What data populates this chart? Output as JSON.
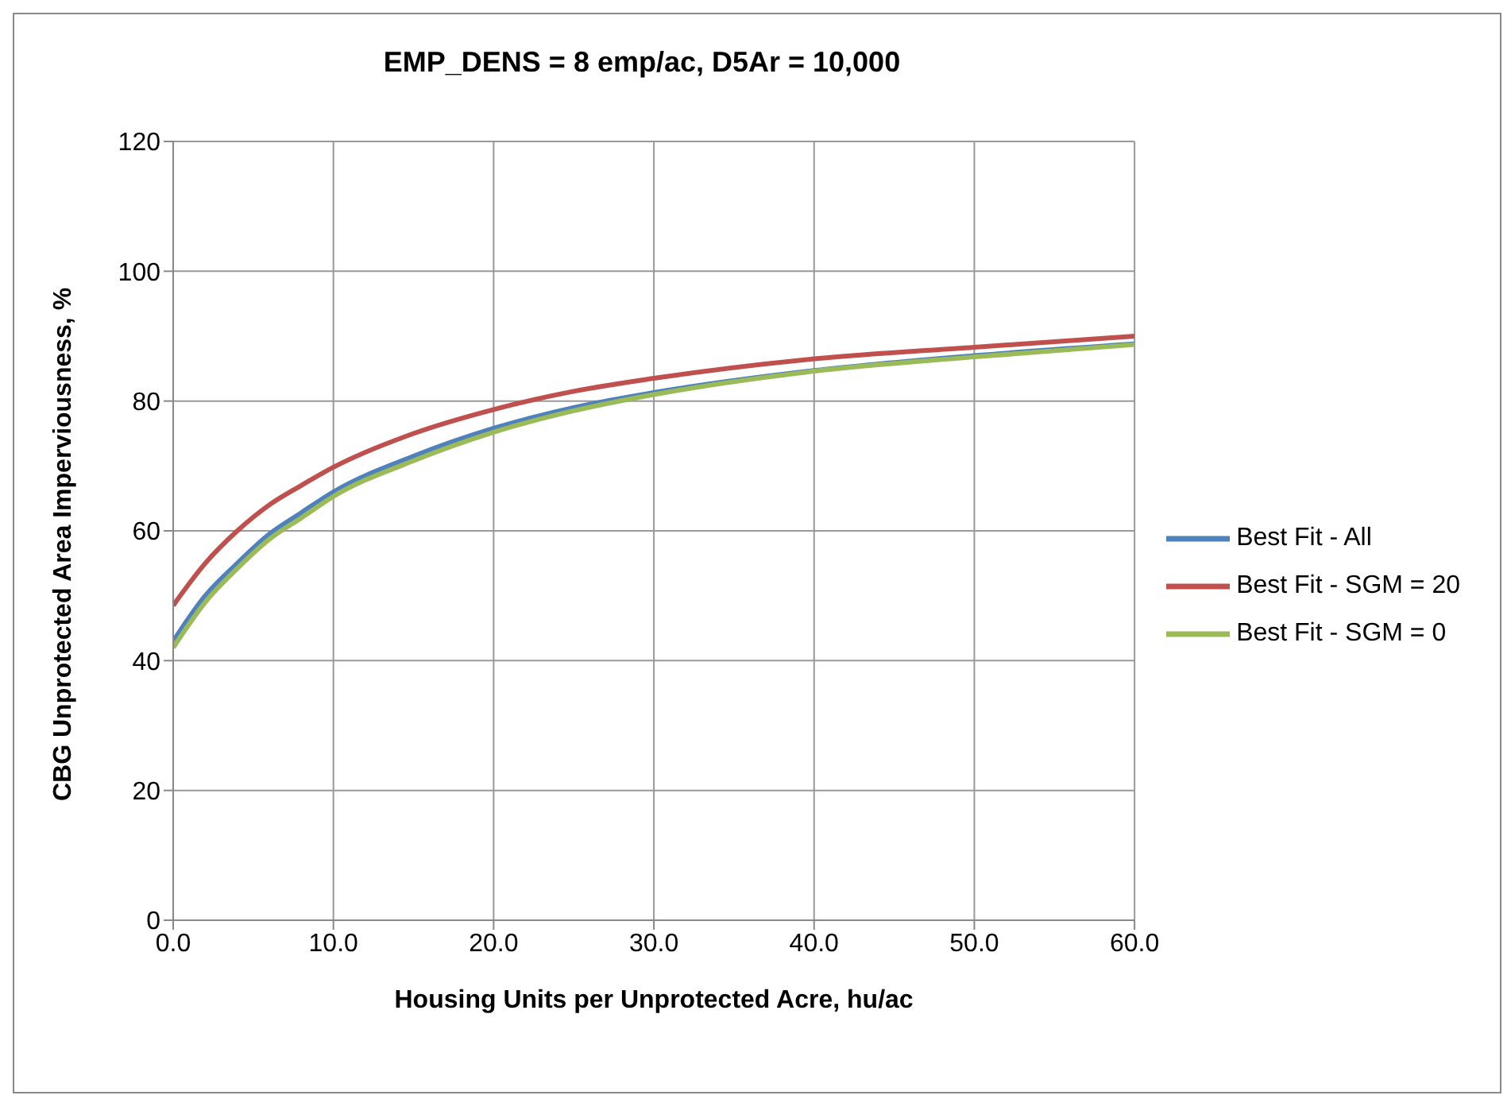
{
  "chart_data": {
    "type": "line",
    "title": "EMP_DENS = 8 emp/ac, D5Ar = 10,000",
    "xlabel": "Housing Units per Unprotected Acre, hu/ac",
    "ylabel": "CBG Unprotected Area Imperviousness, %",
    "x": [
      0,
      2,
      4,
      6,
      8,
      10,
      15,
      20,
      25,
      30,
      40,
      50,
      60
    ],
    "series": [
      {
        "name": "Best Fit - All",
        "color": "#4f81bd",
        "values": [
          43,
          50,
          55,
          59.5,
          62.8,
          66,
          71.5,
          75.8,
          79,
          81.3,
          84.7,
          87,
          88.8
        ]
      },
      {
        "name": "Best Fit - SGM = 20",
        "color": "#c0504d",
        "values": [
          48.5,
          55,
          60,
          64,
          67,
          69.8,
          75,
          78.7,
          81.5,
          83.5,
          86.5,
          88.3,
          90
        ]
      },
      {
        "name": "Best Fit - SGM = 0",
        "color": "#9bbb59",
        "values": [
          42,
          49,
          54.2,
          58.7,
          62,
          65.3,
          70.8,
          75.2,
          78.5,
          81,
          84.6,
          86.8,
          88.7
        ]
      }
    ],
    "xlim": [
      0,
      60
    ],
    "xticks": [
      {
        "value": 0,
        "label": "0.0"
      },
      {
        "value": 10,
        "label": "10.0"
      },
      {
        "value": 20,
        "label": "20.0"
      },
      {
        "value": 30,
        "label": "30.0"
      },
      {
        "value": 40,
        "label": "40.0"
      },
      {
        "value": 50,
        "label": "50.0"
      },
      {
        "value": 60,
        "label": "60.0"
      }
    ],
    "ylim": [
      0,
      120
    ],
    "yticks": [
      0,
      20,
      40,
      60,
      80,
      100,
      120
    ],
    "grid": true,
    "legend": "right",
    "marker": "none",
    "line_style": "solid"
  }
}
